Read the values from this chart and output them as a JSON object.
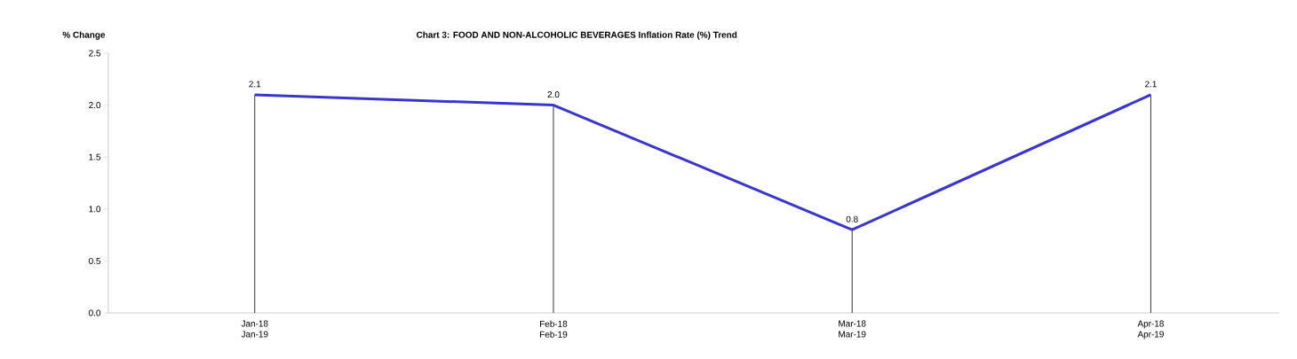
{
  "chart_data": {
    "type": "line",
    "title": "Chart 3: FOOD AND NON-ALCOHOLIC BEVERAGES Inflation Rate (%) Trend",
    "ylabel": "% Change",
    "categories": [
      "Jan-18 Jan-19",
      "Feb-18 Feb-19",
      "Mar-18 Mar-19",
      "Apr-18 Apr-19"
    ],
    "values": [
      2.1,
      2.0,
      0.8,
      2.1
    ],
    "color": "#3a35cc",
    "line_style": "solid",
    "ylim": [
      0,
      2.5
    ],
    "yticks": [
      {
        "value": 0,
        "label": "0.0"
      },
      {
        "value": 0.5,
        "label": "0.5"
      },
      {
        "value": 1,
        "label": "1.0"
      },
      {
        "value": 1.5,
        "label": "1.5"
      },
      {
        "value": 2,
        "label": "2.0"
      },
      {
        "value": 2.5,
        "label": "2.5"
      }
    ],
    "value_labels": [
      "2.1",
      "2.0",
      "0.8",
      "2.1"
    ],
    "grid": "x"
  }
}
